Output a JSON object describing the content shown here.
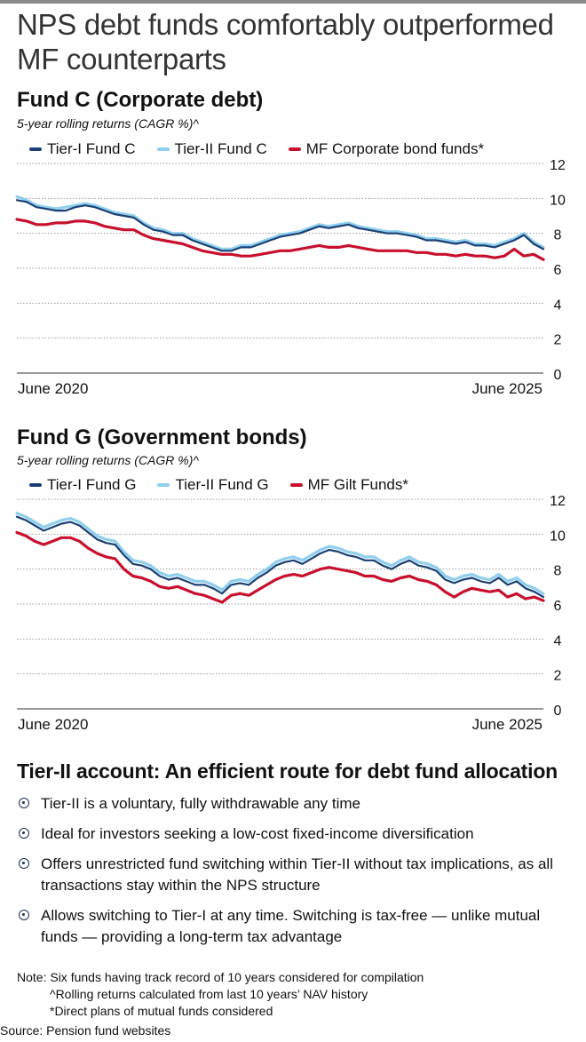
{
  "headline": "NPS debt funds comfortably outperformed MF counterparts",
  "chart_data": [
    {
      "type": "line",
      "title": "Fund C (Corporate debt)",
      "subtitle": "5-year rolling returns (CAGR %)^",
      "x_start_label": "June 2020",
      "x_end_label": "June 2025",
      "ylim": [
        0,
        12
      ],
      "yticks": [
        "0",
        "2",
        "4",
        "6",
        "8",
        "10",
        "12"
      ],
      "legend_position": "top",
      "grid": true,
      "series": [
        {
          "name": "Tier-I Fund C",
          "color": "#1b3f73",
          "values": [
            9.9,
            9.8,
            9.5,
            9.4,
            9.3,
            9.3,
            9.5,
            9.6,
            9.5,
            9.3,
            9.1,
            9.0,
            8.9,
            8.5,
            8.2,
            8.1,
            7.9,
            7.9,
            7.6,
            7.4,
            7.2,
            7.0,
            7.0,
            7.2,
            7.2,
            7.4,
            7.6,
            7.8,
            7.9,
            8.0,
            8.2,
            8.4,
            8.3,
            8.4,
            8.5,
            8.3,
            8.2,
            8.1,
            8.0,
            8.0,
            7.9,
            7.8,
            7.6,
            7.6,
            7.5,
            7.4,
            7.5,
            7.3,
            7.3,
            7.2,
            7.4,
            7.6,
            7.9,
            7.4,
            7.1
          ]
        },
        {
          "name": "Tier-II Fund C",
          "color": "#8fcfee",
          "values": [
            10.1,
            9.9,
            9.6,
            9.5,
            9.4,
            9.5,
            9.6,
            9.7,
            9.6,
            9.4,
            9.2,
            9.1,
            9.0,
            8.6,
            8.3,
            8.2,
            8.0,
            8.0,
            7.7,
            7.5,
            7.3,
            7.1,
            7.1,
            7.3,
            7.3,
            7.5,
            7.7,
            7.9,
            8.0,
            8.1,
            8.3,
            8.5,
            8.4,
            8.5,
            8.6,
            8.4,
            8.3,
            8.2,
            8.1,
            8.1,
            8.0,
            7.9,
            7.7,
            7.7,
            7.6,
            7.5,
            7.6,
            7.4,
            7.4,
            7.3,
            7.5,
            7.7,
            8.0,
            7.5,
            7.2
          ]
        },
        {
          "name": "MF Corporate bond funds*",
          "color": "#c8102e",
          "values": [
            8.8,
            8.7,
            8.5,
            8.5,
            8.6,
            8.6,
            8.7,
            8.7,
            8.6,
            8.4,
            8.3,
            8.2,
            8.2,
            7.9,
            7.7,
            7.6,
            7.5,
            7.4,
            7.2,
            7.0,
            6.9,
            6.8,
            6.8,
            6.7,
            6.7,
            6.8,
            6.9,
            7.0,
            7.0,
            7.1,
            7.2,
            7.3,
            7.2,
            7.2,
            7.3,
            7.2,
            7.1,
            7.0,
            7.0,
            7.0,
            7.0,
            6.9,
            6.9,
            6.8,
            6.8,
            6.7,
            6.8,
            6.7,
            6.7,
            6.6,
            6.7,
            7.1,
            6.7,
            6.8,
            6.5
          ]
        }
      ]
    },
    {
      "type": "line",
      "title": "Fund G (Government bonds)",
      "subtitle": "5-year rolling returns (CAGR %)^",
      "x_start_label": "June 2020",
      "x_end_label": "June 2025",
      "ylim": [
        0,
        12
      ],
      "yticks": [
        "0",
        "2",
        "4",
        "6",
        "8",
        "10",
        "12"
      ],
      "legend_position": "top",
      "grid": true,
      "series": [
        {
          "name": "Tier-I Fund G",
          "color": "#1b3f73",
          "values": [
            11.0,
            10.8,
            10.5,
            10.2,
            10.4,
            10.6,
            10.7,
            10.5,
            10.1,
            9.7,
            9.5,
            9.4,
            8.8,
            8.3,
            8.2,
            8.0,
            7.6,
            7.4,
            7.5,
            7.3,
            7.1,
            7.1,
            6.9,
            6.6,
            7.1,
            7.2,
            7.1,
            7.5,
            7.8,
            8.2,
            8.4,
            8.5,
            8.3,
            8.6,
            8.9,
            9.1,
            9.0,
            8.8,
            8.7,
            8.5,
            8.5,
            8.2,
            8.0,
            8.3,
            8.5,
            8.2,
            8.1,
            7.9,
            7.4,
            7.2,
            7.4,
            7.5,
            7.3,
            7.2,
            7.5,
            7.1,
            7.3,
            6.9,
            6.7,
            6.4
          ]
        },
        {
          "name": "Tier-II Fund G",
          "color": "#8fcfee",
          "values": [
            11.2,
            11.0,
            10.7,
            10.4,
            10.6,
            10.8,
            10.9,
            10.7,
            10.3,
            9.9,
            9.7,
            9.6,
            9.0,
            8.5,
            8.4,
            8.2,
            7.8,
            7.6,
            7.7,
            7.5,
            7.3,
            7.3,
            7.1,
            6.8,
            7.3,
            7.4,
            7.3,
            7.7,
            8.0,
            8.4,
            8.6,
            8.7,
            8.5,
            8.8,
            9.1,
            9.3,
            9.2,
            9.0,
            8.9,
            8.7,
            8.7,
            8.4,
            8.2,
            8.5,
            8.7,
            8.4,
            8.3,
            8.1,
            7.6,
            7.4,
            7.6,
            7.7,
            7.5,
            7.4,
            7.7,
            7.3,
            7.5,
            7.1,
            6.9,
            6.6
          ]
        },
        {
          "name": "MF Gilt Funds*",
          "color": "#c8102e",
          "values": [
            10.1,
            9.9,
            9.6,
            9.4,
            9.6,
            9.8,
            9.8,
            9.6,
            9.2,
            8.9,
            8.7,
            8.6,
            8.0,
            7.6,
            7.5,
            7.3,
            7.0,
            6.9,
            7.0,
            6.8,
            6.6,
            6.5,
            6.3,
            6.1,
            6.5,
            6.6,
            6.5,
            6.8,
            7.1,
            7.4,
            7.6,
            7.7,
            7.6,
            7.8,
            8.0,
            8.1,
            8.0,
            7.9,
            7.8,
            7.6,
            7.6,
            7.4,
            7.3,
            7.5,
            7.6,
            7.4,
            7.3,
            7.1,
            6.7,
            6.4,
            6.7,
            6.9,
            6.8,
            6.7,
            6.8,
            6.4,
            6.6,
            6.3,
            6.4,
            6.2
          ]
        }
      ]
    }
  ],
  "tier2": {
    "heading": "Tier-II account: An efficient route for debt fund allocation",
    "bullets": [
      "Tier-II is a voluntary, fully withdrawable any time",
      "Ideal for investors seeking a low-cost fixed-income diversification",
      "Offers unrestricted fund switching within Tier-II without tax implications, as all transactions stay within the NPS structure",
      "Allows switching to Tier-I at any time. Switching is tax-free — unlike mutual funds — providing a long-term tax advantage"
    ]
  },
  "notes": {
    "line1": "Note: Six funds having track record of 10 years considered for compilation",
    "line2": "^Rolling returns calculated from last 10 years’ NAV history",
    "line3": "*Direct plans of mutual funds considered"
  },
  "source": "Source: Pension fund websites"
}
